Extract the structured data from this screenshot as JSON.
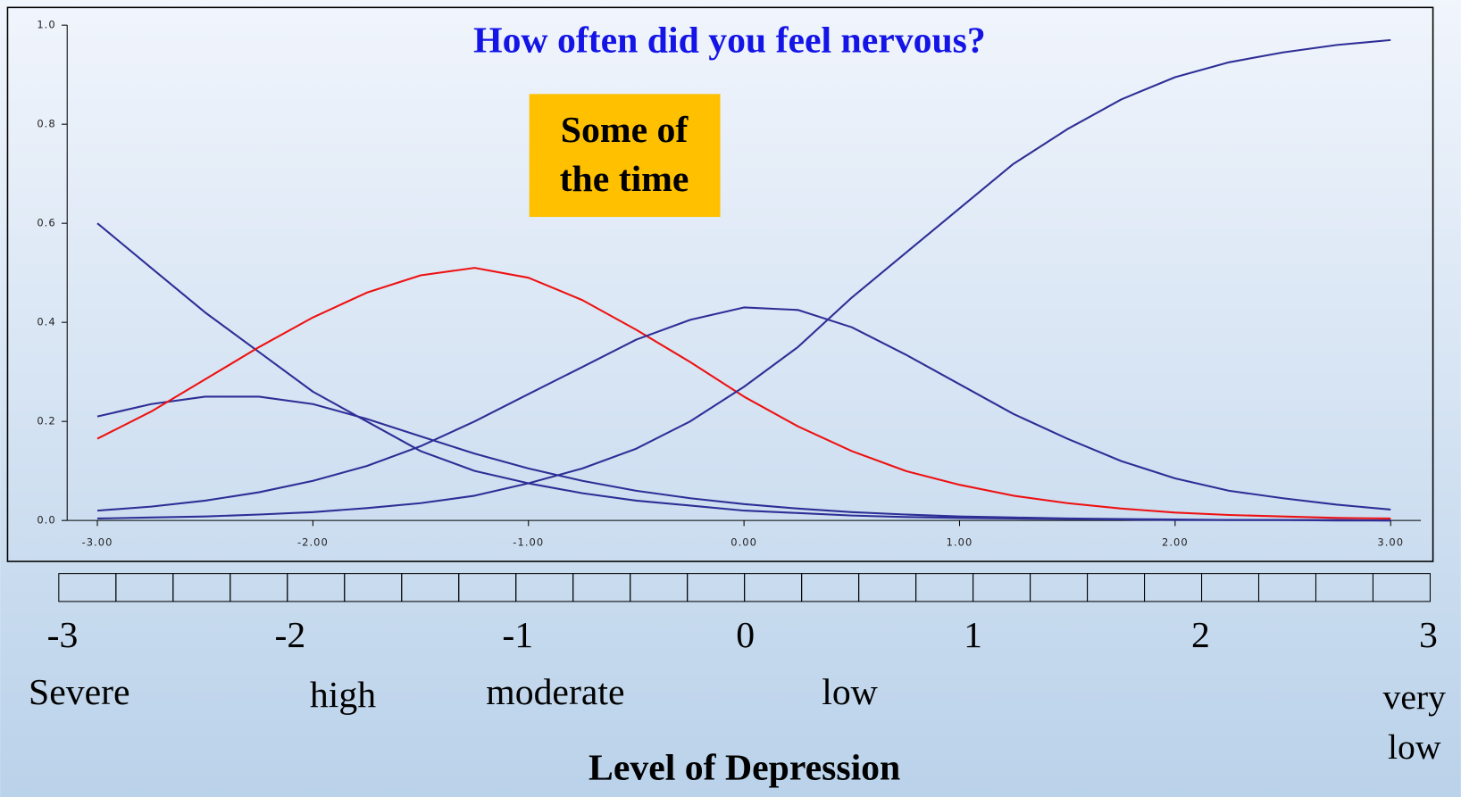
{
  "chart_data": {
    "type": "line",
    "title": "How often did you feel nervous?",
    "annotation": [
      "Some of",
      "the time"
    ],
    "x": [
      -3,
      -2.75,
      -2.5,
      -2.25,
      -2,
      -1.75,
      -1.5,
      -1.25,
      -1,
      -0.75,
      -0.5,
      -0.25,
      0,
      0.25,
      0.5,
      0.75,
      1,
      1.25,
      1.5,
      1.75,
      2,
      2.25,
      2.5,
      2.75,
      3
    ],
    "series": [
      {
        "color": "#2e2e96",
        "values": [
          0.6,
          0.51,
          0.42,
          0.34,
          0.26,
          0.2,
          0.14,
          0.1,
          0.075,
          0.055,
          0.04,
          0.03,
          0.02,
          0.015,
          0.01,
          0.007,
          0.005,
          0.004,
          0.003,
          0.002,
          0.001,
          0.001,
          0.001,
          0,
          0
        ]
      },
      {
        "color": "#2e2e96",
        "values": [
          0.21,
          0.235,
          0.25,
          0.25,
          0.235,
          0.205,
          0.17,
          0.135,
          0.105,
          0.08,
          0.06,
          0.045,
          0.033,
          0.024,
          0.017,
          0.012,
          0.008,
          0.006,
          0.004,
          0.003,
          0.002,
          0.001,
          0.001,
          0.001,
          0
        ]
      },
      {
        "color": "#ee1111",
        "values": [
          0.165,
          0.22,
          0.285,
          0.35,
          0.41,
          0.46,
          0.495,
          0.51,
          0.49,
          0.445,
          0.385,
          0.32,
          0.25,
          0.19,
          0.14,
          0.1,
          0.072,
          0.05,
          0.035,
          0.024,
          0.016,
          0.011,
          0.008,
          0.005,
          0.004
        ]
      },
      {
        "color": "#2e2e96",
        "values": [
          0.02,
          0.028,
          0.04,
          0.057,
          0.08,
          0.11,
          0.15,
          0.2,
          0.255,
          0.31,
          0.365,
          0.405,
          0.43,
          0.425,
          0.39,
          0.335,
          0.275,
          0.215,
          0.165,
          0.12,
          0.085,
          0.06,
          0.045,
          0.032,
          0.022
        ]
      },
      {
        "color": "#2e2e96",
        "values": [
          0.004,
          0.006,
          0.008,
          0.012,
          0.017,
          0.025,
          0.035,
          0.05,
          0.075,
          0.105,
          0.145,
          0.2,
          0.27,
          0.35,
          0.45,
          0.54,
          0.63,
          0.72,
          0.79,
          0.85,
          0.895,
          0.925,
          0.945,
          0.96,
          0.97
        ]
      }
    ],
    "xlim": [
      -3.14,
      3.14
    ],
    "ylim": [
      0,
      1.0
    ],
    "xticks": [
      {
        "value": -3,
        "label": "-3.00"
      },
      {
        "value": -2,
        "label": "-2.00"
      },
      {
        "value": -1,
        "label": "-1.00"
      },
      {
        "value": 0,
        "label": "0.00"
      },
      {
        "value": 1,
        "label": "1.00"
      },
      {
        "value": 2,
        "label": "2.00"
      },
      {
        "value": 3,
        "label": "3.00"
      }
    ],
    "yticks": [
      {
        "value": 0,
        "label": "0.0"
      },
      0.2,
      0.4,
      0.6,
      0.8,
      {
        "value": 1,
        "label": "1.0"
      }
    ],
    "scale_ticks": [
      -3,
      -2,
      -1,
      0,
      1,
      2,
      3
    ],
    "scale_labels": [
      "Severe",
      "high",
      "moderate",
      "low",
      "very low"
    ],
    "xlabel": "Level of Depression"
  }
}
